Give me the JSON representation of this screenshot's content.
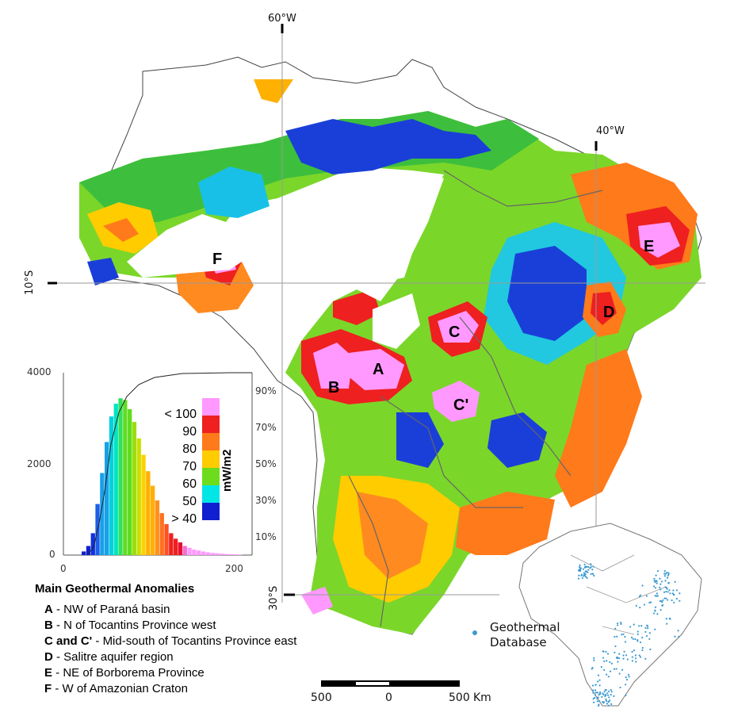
{
  "map": {
    "meridian_60": "60°W",
    "meridian_40": "40°W",
    "parallel_10": "10°S",
    "parallel_30": "30°S",
    "anomaly_labels": [
      "A",
      "B",
      "C",
      "C'",
      "D",
      "E",
      "F"
    ]
  },
  "histogram": {
    "y_ticks": [
      "4000",
      "2000",
      "0"
    ],
    "x_ticks": [
      "0",
      "200"
    ],
    "cumulative_ticks": [
      "90%",
      "70%",
      "50%",
      "30%",
      "10%"
    ]
  },
  "colorbar": {
    "unit": "mW/m2",
    "labels": [
      "< 100",
      "90",
      "80",
      "70",
      "60",
      "50",
      "> 40"
    ],
    "colors": [
      "#ff99ff",
      "#ee2020",
      "#ff7a1a",
      "#ffcc00",
      "#6ddc1c",
      "#00e5e5",
      "#1020d0"
    ]
  },
  "legend": {
    "title": "Main Geothermal Anomalies",
    "items": [
      {
        "key": "A",
        "text": " - NW of Paraná basin"
      },
      {
        "key": "B",
        "text": " - N of Tocantins Province west"
      },
      {
        "key": "C and C'",
        "text": " - Mid-south of Tocantins Province east"
      },
      {
        "key": "D",
        "text": " - Salitre aquifer region"
      },
      {
        "key": "E",
        "text": " - NE of Borborema Province"
      },
      {
        "key": "F",
        "text": " - W of Amazonian Craton"
      }
    ]
  },
  "scalebar": {
    "labels": [
      "500",
      "0",
      "500"
    ],
    "unit": "Km"
  },
  "inset": {
    "label_line1": "Geothermal",
    "label_line2": "Database",
    "dot_color": "#3a9ad0"
  }
}
